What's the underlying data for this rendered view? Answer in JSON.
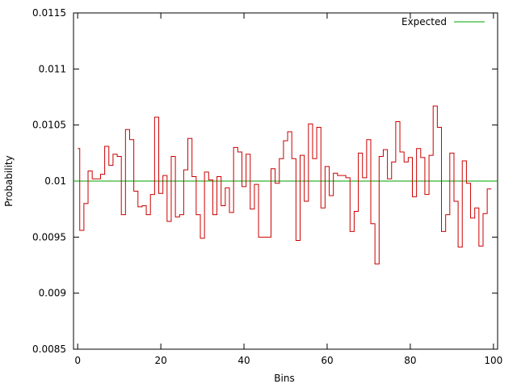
{
  "chart_data": {
    "type": "line",
    "subtype": "step",
    "title": "",
    "xlabel": "Bins",
    "ylabel": "Probability",
    "xlim": [
      -1,
      101
    ],
    "ylim": [
      0.0085,
      0.0115
    ],
    "grid": false,
    "legend_position": "top-right",
    "x_ticks": [
      0,
      20,
      40,
      60,
      80,
      100
    ],
    "x_tick_labels": [
      "0",
      "20",
      "40",
      "60",
      "80",
      "100"
    ],
    "y_ticks": [
      0.0085,
      0.009,
      0.0095,
      0.01,
      0.0105,
      0.011,
      0.0115
    ],
    "y_tick_labels": [
      "0.0085",
      "0.009",
      "0.0095",
      "0.01",
      "0.0105",
      "0.011",
      "0.0115"
    ],
    "series": [
      {
        "color": "#cc0000",
        "x": [
          0,
          1,
          2,
          3,
          4,
          5,
          6,
          7,
          8,
          9,
          10,
          11,
          12,
          13,
          14,
          15,
          16,
          17,
          18,
          19,
          20,
          21,
          22,
          23,
          24,
          25,
          26,
          27,
          28,
          29,
          30,
          31,
          32,
          33,
          34,
          35,
          36,
          37,
          38,
          39,
          40,
          41,
          42,
          43,
          44,
          45,
          46,
          47,
          48,
          49,
          50,
          51,
          52,
          53,
          54,
          55,
          56,
          57,
          58,
          59,
          60,
          61,
          62,
          63,
          64,
          65,
          66,
          67,
          68,
          69,
          70,
          71,
          72,
          73,
          74,
          75,
          76,
          77,
          78,
          79,
          80,
          81,
          82,
          83,
          84,
          85,
          86,
          87,
          88,
          89,
          90,
          91,
          92,
          93,
          94,
          95,
          96,
          97,
          98,
          99
        ],
        "values": [
          0.01029,
          0.00956,
          0.0098,
          0.01009,
          0.01002,
          0.01002,
          0.01006,
          0.01031,
          0.01014,
          0.01024,
          0.01022,
          0.0097,
          0.01046,
          0.01037,
          0.00991,
          0.00977,
          0.00978,
          0.0097,
          0.00988,
          0.01057,
          0.00989,
          0.01005,
          0.00964,
          0.01022,
          0.00968,
          0.0097,
          0.0101,
          0.01038,
          0.01004,
          0.0097,
          0.00949,
          0.01008,
          0.01001,
          0.0097,
          0.01004,
          0.00978,
          0.00994,
          0.00972,
          0.0103,
          0.01026,
          0.00995,
          0.01024,
          0.00975,
          0.00997,
          0.0095,
          0.0095,
          0.0095,
          0.01011,
          0.00998,
          0.0102,
          0.01036,
          0.01044,
          0.0102,
          0.00947,
          0.01023,
          0.00982,
          0.01051,
          0.0102,
          0.01048,
          0.00976,
          0.01013,
          0.00987,
          0.01007,
          0.01005,
          0.01005,
          0.01003,
          0.00955,
          0.00973,
          0.01025,
          0.01003,
          0.01037,
          0.00962,
          0.00926,
          0.01022,
          0.01028,
          0.01002,
          0.01017,
          0.01053,
          0.01026,
          0.01017,
          0.01021,
          0.00986,
          0.01029,
          0.01021,
          0.00988,
          0.01023,
          0.01067,
          0.01048,
          0.00955,
          0.0097,
          0.01025,
          0.00982,
          0.00941,
          0.01018,
          0.00998,
          0.00967,
          0.00976,
          0.00942,
          0.00971,
          0.00993
        ]
      },
      {
        "name": "Expected",
        "color": "#00a000",
        "x": [
          -1,
          101
        ],
        "values": [
          0.01,
          0.01
        ]
      }
    ]
  }
}
